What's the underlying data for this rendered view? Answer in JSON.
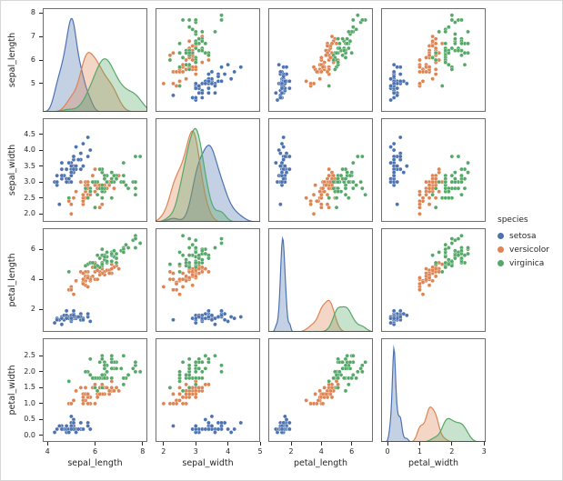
{
  "figure": {
    "background": "#ffffff",
    "spine_color": "#333333",
    "tick_color": "#262626"
  },
  "chart_data": {
    "type": "scatter",
    "subtype": "pairplot",
    "diagonal": "kde",
    "grid": false,
    "legend_position": "right",
    "variables": [
      "sepal_length",
      "sepal_width",
      "petal_length",
      "petal_width"
    ],
    "axes": [
      {
        "var": "sepal_length",
        "range": [
          3.8,
          8.2
        ],
        "yticks": [
          5,
          6,
          7,
          8
        ],
        "ytick_labels": [
          "5",
          "6",
          "7",
          "8"
        ],
        "xticks": [
          4,
          6,
          8
        ],
        "xtick_labels": [
          "4",
          "6",
          "8"
        ]
      },
      {
        "var": "sepal_width",
        "range": [
          1.75,
          5.0
        ],
        "yticks": [
          2.0,
          2.5,
          3.0,
          3.5,
          4.0,
          4.5
        ],
        "ytick_labels": [
          "2.0",
          "2.5",
          "3.0",
          "3.5",
          "4.0",
          "4.5"
        ],
        "xticks": [
          2,
          3,
          4,
          5
        ],
        "xtick_labels": [
          "2",
          "3",
          "4",
          "5"
        ]
      },
      {
        "var": "petal_length",
        "range": [
          0.5,
          7.4
        ],
        "yticks": [
          2,
          4,
          6
        ],
        "ytick_labels": [
          "2",
          "4",
          "6"
        ],
        "xticks": [
          2,
          4,
          6
        ],
        "xtick_labels": [
          "2",
          "4",
          "6"
        ]
      },
      {
        "var": "petal_width",
        "range": [
          -0.2,
          3.05
        ],
        "yticks": [
          0.0,
          0.5,
          1.0,
          1.5,
          2.0,
          2.5
        ],
        "ytick_labels": [
          "0.0",
          "0.5",
          "1.0",
          "1.5",
          "2.0",
          "2.5"
        ],
        "xticks": [
          0,
          1,
          2,
          3
        ],
        "xtick_labels": [
          "0",
          "1",
          "2",
          "3"
        ]
      }
    ],
    "legend": {
      "title": "species",
      "entries": [
        {
          "label": "setosa",
          "color": "#4c72b0"
        },
        {
          "label": "versicolor",
          "color": "#dd8452"
        },
        {
          "label": "virginica",
          "color": "#55a868"
        }
      ]
    },
    "series": [
      {
        "name": "setosa",
        "color": "#4c72b0",
        "data": [
          [
            5.1,
            3.5,
            1.4,
            0.2
          ],
          [
            4.9,
            3.0,
            1.4,
            0.2
          ],
          [
            4.7,
            3.2,
            1.3,
            0.2
          ],
          [
            4.6,
            3.1,
            1.5,
            0.2
          ],
          [
            5.0,
            3.6,
            1.4,
            0.2
          ],
          [
            5.4,
            3.9,
            1.7,
            0.4
          ],
          [
            4.6,
            3.4,
            1.4,
            0.3
          ],
          [
            5.0,
            3.4,
            1.5,
            0.2
          ],
          [
            4.4,
            2.9,
            1.4,
            0.2
          ],
          [
            4.9,
            3.1,
            1.5,
            0.1
          ],
          [
            5.4,
            3.7,
            1.5,
            0.2
          ],
          [
            4.8,
            3.4,
            1.6,
            0.2
          ],
          [
            4.8,
            3.0,
            1.4,
            0.1
          ],
          [
            4.3,
            3.0,
            1.1,
            0.1
          ],
          [
            5.8,
            4.0,
            1.2,
            0.2
          ],
          [
            5.7,
            4.4,
            1.5,
            0.4
          ],
          [
            5.4,
            3.9,
            1.3,
            0.4
          ],
          [
            5.1,
            3.5,
            1.4,
            0.3
          ],
          [
            5.7,
            3.8,
            1.7,
            0.3
          ],
          [
            5.1,
            3.8,
            1.5,
            0.3
          ],
          [
            5.4,
            3.4,
            1.7,
            0.2
          ],
          [
            5.1,
            3.7,
            1.5,
            0.4
          ],
          [
            4.6,
            3.6,
            1.0,
            0.2
          ],
          [
            5.1,
            3.3,
            1.7,
            0.5
          ],
          [
            4.8,
            3.4,
            1.9,
            0.2
          ],
          [
            5.0,
            3.0,
            1.6,
            0.2
          ],
          [
            5.0,
            3.4,
            1.6,
            0.4
          ],
          [
            5.2,
            3.5,
            1.5,
            0.2
          ],
          [
            5.2,
            3.4,
            1.4,
            0.2
          ],
          [
            4.7,
            3.2,
            1.6,
            0.2
          ],
          [
            4.8,
            3.1,
            1.6,
            0.2
          ],
          [
            5.4,
            3.4,
            1.5,
            0.4
          ],
          [
            5.2,
            4.1,
            1.5,
            0.1
          ],
          [
            5.5,
            4.2,
            1.4,
            0.2
          ],
          [
            4.9,
            3.1,
            1.5,
            0.2
          ],
          [
            5.0,
            3.2,
            1.2,
            0.2
          ],
          [
            5.5,
            3.5,
            1.3,
            0.2
          ],
          [
            4.9,
            3.6,
            1.4,
            0.1
          ],
          [
            4.4,
            3.0,
            1.3,
            0.2
          ],
          [
            5.1,
            3.4,
            1.5,
            0.2
          ],
          [
            5.0,
            3.5,
            1.3,
            0.3
          ],
          [
            4.5,
            2.3,
            1.3,
            0.3
          ],
          [
            4.4,
            3.2,
            1.3,
            0.2
          ],
          [
            5.0,
            3.5,
            1.6,
            0.6
          ],
          [
            5.1,
            3.8,
            1.9,
            0.4
          ],
          [
            4.8,
            3.0,
            1.4,
            0.3
          ],
          [
            5.1,
            3.8,
            1.6,
            0.2
          ],
          [
            4.6,
            3.2,
            1.4,
            0.2
          ],
          [
            5.3,
            3.7,
            1.5,
            0.2
          ],
          [
            5.0,
            3.3,
            1.4,
            0.2
          ]
        ]
      },
      {
        "name": "versicolor",
        "color": "#dd8452",
        "data": [
          [
            7.0,
            3.2,
            4.7,
            1.4
          ],
          [
            6.4,
            3.2,
            4.5,
            1.5
          ],
          [
            6.9,
            3.1,
            4.9,
            1.5
          ],
          [
            5.5,
            2.3,
            4.0,
            1.3
          ],
          [
            6.5,
            2.8,
            4.6,
            1.5
          ],
          [
            5.7,
            2.8,
            4.5,
            1.3
          ],
          [
            6.3,
            3.3,
            4.7,
            1.6
          ],
          [
            4.9,
            2.4,
            3.3,
            1.0
          ],
          [
            6.6,
            2.9,
            4.6,
            1.3
          ],
          [
            5.2,
            2.7,
            3.9,
            1.4
          ],
          [
            5.0,
            2.0,
            3.5,
            1.0
          ],
          [
            5.9,
            3.0,
            4.2,
            1.5
          ],
          [
            6.0,
            2.2,
            4.0,
            1.0
          ],
          [
            6.1,
            2.9,
            4.7,
            1.4
          ],
          [
            5.6,
            2.9,
            3.6,
            1.3
          ],
          [
            6.7,
            3.1,
            4.4,
            1.4
          ],
          [
            5.6,
            3.0,
            4.5,
            1.5
          ],
          [
            5.8,
            2.7,
            4.1,
            1.0
          ],
          [
            6.2,
            2.2,
            4.5,
            1.5
          ],
          [
            5.6,
            2.5,
            3.9,
            1.1
          ],
          [
            5.9,
            3.2,
            4.8,
            1.8
          ],
          [
            6.1,
            2.8,
            4.0,
            1.3
          ],
          [
            6.3,
            2.5,
            4.9,
            1.5
          ],
          [
            6.1,
            2.8,
            4.7,
            1.2
          ],
          [
            6.4,
            2.9,
            4.3,
            1.3
          ],
          [
            6.6,
            3.0,
            4.4,
            1.4
          ],
          [
            6.8,
            2.8,
            4.8,
            1.4
          ],
          [
            6.7,
            3.0,
            5.0,
            1.7
          ],
          [
            6.0,
            2.9,
            4.5,
            1.5
          ],
          [
            5.7,
            2.6,
            3.5,
            1.0
          ],
          [
            5.5,
            2.4,
            3.8,
            1.1
          ],
          [
            5.5,
            2.4,
            3.7,
            1.0
          ],
          [
            5.8,
            2.7,
            3.9,
            1.2
          ],
          [
            6.0,
            2.7,
            5.1,
            1.6
          ],
          [
            5.4,
            3.0,
            4.5,
            1.5
          ],
          [
            6.0,
            3.4,
            4.5,
            1.6
          ],
          [
            6.7,
            3.1,
            4.7,
            1.5
          ],
          [
            6.3,
            2.3,
            4.4,
            1.3
          ],
          [
            5.6,
            3.0,
            4.1,
            1.3
          ],
          [
            5.5,
            2.5,
            4.0,
            1.3
          ],
          [
            5.5,
            2.6,
            4.4,
            1.2
          ],
          [
            6.1,
            3.0,
            4.6,
            1.4
          ],
          [
            5.8,
            2.6,
            4.0,
            1.2
          ],
          [
            5.0,
            2.3,
            3.3,
            1.0
          ],
          [
            5.6,
            2.7,
            4.2,
            1.3
          ],
          [
            5.7,
            3.0,
            4.2,
            1.2
          ],
          [
            5.7,
            2.9,
            4.2,
            1.3
          ],
          [
            6.2,
            2.9,
            4.3,
            1.3
          ],
          [
            5.1,
            2.5,
            3.0,
            1.1
          ],
          [
            5.7,
            2.8,
            4.1,
            1.3
          ]
        ]
      },
      {
        "name": "virginica",
        "color": "#55a868",
        "data": [
          [
            6.3,
            3.3,
            6.0,
            2.5
          ],
          [
            5.8,
            2.7,
            5.1,
            1.9
          ],
          [
            7.1,
            3.0,
            5.9,
            2.1
          ],
          [
            6.3,
            2.9,
            5.6,
            1.8
          ],
          [
            6.5,
            3.0,
            5.8,
            2.2
          ],
          [
            7.6,
            3.0,
            6.6,
            2.1
          ],
          [
            4.9,
            2.5,
            4.5,
            1.7
          ],
          [
            7.3,
            2.9,
            6.3,
            1.8
          ],
          [
            6.7,
            2.5,
            5.8,
            1.8
          ],
          [
            7.2,
            3.6,
            6.1,
            2.5
          ],
          [
            6.5,
            3.2,
            5.1,
            2.0
          ],
          [
            6.4,
            2.7,
            5.3,
            1.9
          ],
          [
            6.8,
            3.0,
            5.5,
            2.1
          ],
          [
            5.7,
            2.5,
            5.0,
            2.0
          ],
          [
            5.8,
            2.8,
            5.1,
            2.4
          ],
          [
            6.4,
            3.2,
            5.3,
            2.3
          ],
          [
            6.5,
            3.0,
            5.5,
            1.8
          ],
          [
            7.7,
            3.8,
            6.7,
            2.2
          ],
          [
            7.7,
            2.6,
            6.9,
            2.3
          ],
          [
            6.0,
            2.2,
            5.0,
            1.5
          ],
          [
            6.9,
            3.2,
            5.7,
            2.3
          ],
          [
            5.6,
            2.8,
            4.9,
            2.0
          ],
          [
            7.7,
            2.8,
            6.7,
            2.0
          ],
          [
            6.3,
            2.7,
            4.9,
            1.8
          ],
          [
            6.7,
            3.3,
            5.7,
            2.1
          ],
          [
            7.2,
            3.2,
            6.0,
            1.8
          ],
          [
            6.2,
            2.8,
            4.8,
            1.8
          ],
          [
            6.1,
            3.0,
            4.9,
            1.8
          ],
          [
            6.4,
            2.8,
            5.6,
            2.1
          ],
          [
            7.2,
            3.0,
            5.8,
            1.6
          ],
          [
            7.4,
            2.8,
            6.1,
            1.9
          ],
          [
            7.9,
            3.8,
            6.4,
            2.0
          ],
          [
            6.4,
            2.8,
            5.6,
            2.2
          ],
          [
            6.3,
            2.8,
            5.1,
            1.5
          ],
          [
            6.1,
            2.6,
            5.6,
            1.4
          ],
          [
            7.7,
            3.0,
            6.1,
            2.3
          ],
          [
            6.3,
            3.4,
            5.6,
            2.4
          ],
          [
            6.4,
            3.1,
            5.5,
            1.8
          ],
          [
            6.0,
            3.0,
            4.8,
            1.8
          ],
          [
            6.9,
            3.1,
            5.4,
            2.1
          ],
          [
            6.7,
            3.1,
            5.6,
            2.4
          ],
          [
            6.9,
            3.1,
            5.1,
            2.3
          ],
          [
            5.8,
            2.7,
            5.1,
            1.9
          ],
          [
            6.8,
            3.2,
            5.9,
            2.3
          ],
          [
            6.7,
            3.3,
            5.7,
            2.5
          ],
          [
            6.7,
            3.0,
            5.2,
            2.3
          ],
          [
            6.3,
            2.5,
            5.0,
            1.9
          ],
          [
            6.5,
            3.0,
            5.2,
            2.0
          ],
          [
            6.2,
            3.4,
            5.4,
            2.3
          ],
          [
            5.9,
            3.0,
            5.1,
            1.8
          ]
        ]
      }
    ]
  }
}
